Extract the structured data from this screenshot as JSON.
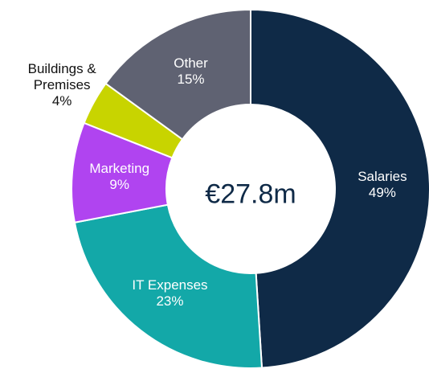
{
  "chart_data": {
    "type": "donut",
    "center_label": "€27.8m",
    "categories": [
      "Salaries",
      "IT Expenses",
      "Marketing",
      "Buildings & Premises",
      "Other"
    ],
    "values": [
      49,
      23,
      9,
      4,
      15
    ],
    "value_labels": [
      "49%",
      "23%",
      "9%",
      "4%",
      "15%"
    ],
    "colors": [
      "#0f2a47",
      "#13a8a8",
      "#b044f0",
      "#c8d400",
      "#5f6272"
    ]
  }
}
